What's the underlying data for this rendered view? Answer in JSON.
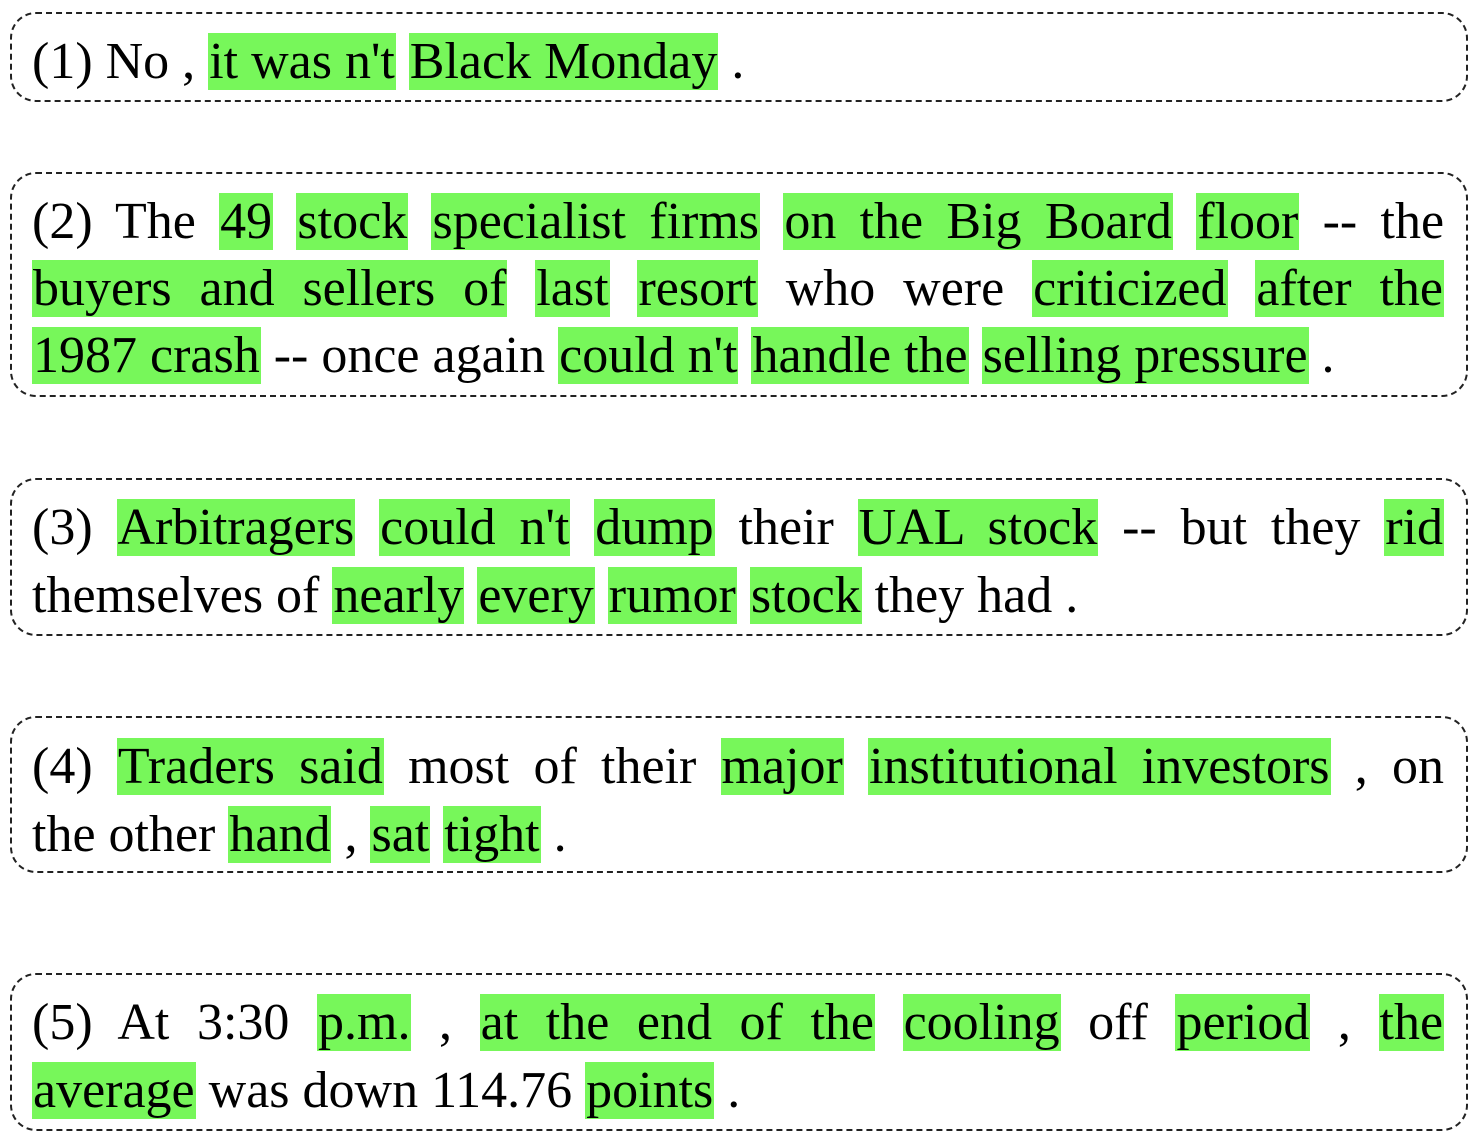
{
  "highlight_color": "#77f75a",
  "examples": [
    {
      "id": "1",
      "lines": [
        [
          {
            "text": "(1) No , ",
            "hl": false
          },
          {
            "text": "it was n't",
            "hl": true
          },
          {
            "text": " ",
            "hl": false
          },
          {
            "text": "Black Monday",
            "hl": true
          },
          {
            "text": " .",
            "hl": false
          }
        ]
      ]
    },
    {
      "id": "2",
      "lines": [
        [
          {
            "text": "(2) The ",
            "hl": false
          },
          {
            "text": "49",
            "hl": true
          },
          {
            "text": " ",
            "hl": false
          },
          {
            "text": "stock",
            "hl": true
          },
          {
            "text": " ",
            "hl": false
          },
          {
            "text": "specialist firms",
            "hl": true
          },
          {
            "text": " ",
            "hl": false
          },
          {
            "text": "on the Big Board",
            "hl": true
          },
          {
            "text": " ",
            "hl": false
          },
          {
            "text": "floor",
            "hl": true
          },
          {
            "text": " -- the",
            "hl": false
          }
        ],
        [
          {
            "text": "buyers and sellers of",
            "hl": true
          },
          {
            "text": " ",
            "hl": false
          },
          {
            "text": "last",
            "hl": true
          },
          {
            "text": " ",
            "hl": false
          },
          {
            "text": "resort",
            "hl": true
          },
          {
            "text": " who were ",
            "hl": false
          },
          {
            "text": "criticized",
            "hl": true
          },
          {
            "text": " ",
            "hl": false
          },
          {
            "text": "after the",
            "hl": true
          }
        ],
        [
          {
            "text": "1987 crash",
            "hl": true
          },
          {
            "text": " -- once again ",
            "hl": false
          },
          {
            "text": "could n't",
            "hl": true
          },
          {
            "text": " ",
            "hl": false
          },
          {
            "text": "handle the",
            "hl": true
          },
          {
            "text": " ",
            "hl": false
          },
          {
            "text": "selling pressure",
            "hl": true
          },
          {
            "text": " .",
            "hl": false
          }
        ]
      ]
    },
    {
      "id": "3",
      "lines": [
        [
          {
            "text": "(3) ",
            "hl": false
          },
          {
            "text": "Arbitragers",
            "hl": true
          },
          {
            "text": " ",
            "hl": false
          },
          {
            "text": "could n't",
            "hl": true
          },
          {
            "text": " ",
            "hl": false
          },
          {
            "text": "dump",
            "hl": true
          },
          {
            "text": " their ",
            "hl": false
          },
          {
            "text": "UAL stock",
            "hl": true
          },
          {
            "text": " -- but they ",
            "hl": false
          },
          {
            "text": "rid",
            "hl": true
          }
        ],
        [
          {
            "text": "themselves of ",
            "hl": false
          },
          {
            "text": "nearly",
            "hl": true
          },
          {
            "text": " ",
            "hl": false
          },
          {
            "text": "every",
            "hl": true
          },
          {
            "text": " ",
            "hl": false
          },
          {
            "text": "rumor",
            "hl": true
          },
          {
            "text": " ",
            "hl": false
          },
          {
            "text": "stock",
            "hl": true
          },
          {
            "text": " they had .",
            "hl": false
          }
        ]
      ]
    },
    {
      "id": "4",
      "lines": [
        [
          {
            "text": "(4) ",
            "hl": false
          },
          {
            "text": "Traders said",
            "hl": true
          },
          {
            "text": " most of their ",
            "hl": false
          },
          {
            "text": "major",
            "hl": true
          },
          {
            "text": " ",
            "hl": false
          },
          {
            "text": "institutional investors",
            "hl": true
          },
          {
            "text": " , on",
            "hl": false
          }
        ],
        [
          {
            "text": "the other ",
            "hl": false
          },
          {
            "text": "hand",
            "hl": true
          },
          {
            "text": " , ",
            "hl": false
          },
          {
            "text": "sat",
            "hl": true
          },
          {
            "text": " ",
            "hl": false
          },
          {
            "text": "tight",
            "hl": true
          },
          {
            "text": " .",
            "hl": false
          }
        ]
      ]
    },
    {
      "id": "5",
      "lines": [
        [
          {
            "text": "(5) At 3:30 ",
            "hl": false
          },
          {
            "text": "p.m.",
            "hl": true
          },
          {
            "text": " , ",
            "hl": false
          },
          {
            "text": "at the end of the",
            "hl": true
          },
          {
            "text": " ",
            "hl": false
          },
          {
            "text": "cooling",
            "hl": true
          },
          {
            "text": " off ",
            "hl": false
          },
          {
            "text": "period",
            "hl": true
          },
          {
            "text": " , ",
            "hl": false
          },
          {
            "text": "the",
            "hl": true
          }
        ],
        [
          {
            "text": "average",
            "hl": true
          },
          {
            "text": " was down 114.76 ",
            "hl": false
          },
          {
            "text": "points",
            "hl": true
          },
          {
            "text": " .",
            "hl": false
          }
        ]
      ]
    }
  ]
}
